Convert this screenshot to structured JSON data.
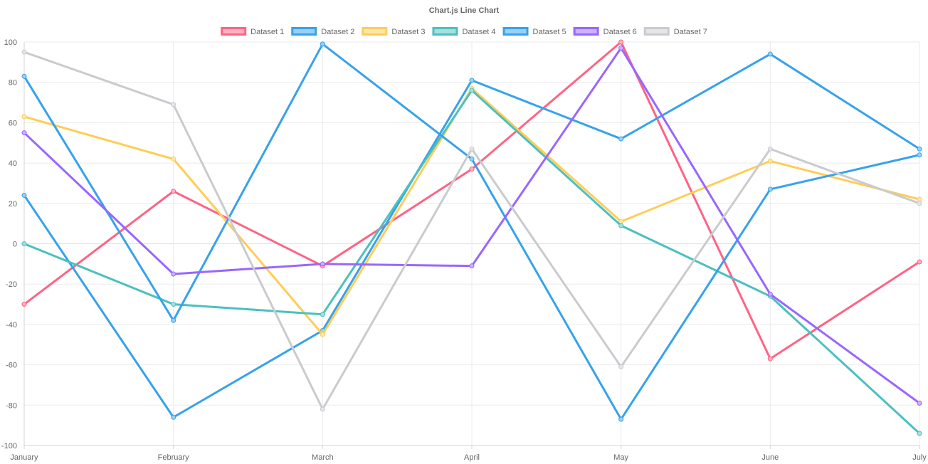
{
  "chart_data": {
    "type": "line",
    "title": "Chart.js Line Chart",
    "xlabel": "",
    "ylabel": "",
    "categories": [
      "January",
      "February",
      "March",
      "April",
      "May",
      "June",
      "July"
    ],
    "ylim": [
      -100,
      100
    ],
    "yticks": [
      100,
      80,
      60,
      40,
      20,
      0,
      -20,
      -40,
      -60,
      -80,
      -100
    ],
    "grid": true,
    "legend_position": "top",
    "series": [
      {
        "name": "Dataset 1",
        "color": "#ff6384",
        "fill": "#ffb1c1",
        "values": [
          -30,
          26,
          -11,
          37,
          100,
          -57,
          -9
        ]
      },
      {
        "name": "Dataset 2",
        "color": "#36a2eb",
        "fill": "#9ad0f5",
        "values": [
          24,
          -86,
          -43,
          81,
          52,
          94,
          47
        ]
      },
      {
        "name": "Dataset 3",
        "color": "#ffcd56",
        "fill": "#ffe6aa",
        "values": [
          63,
          42,
          -45,
          77,
          11,
          41,
          22
        ]
      },
      {
        "name": "Dataset 4",
        "color": "#4bc0c0",
        "fill": "#a5dfdf",
        "values": [
          0,
          -30,
          -35,
          76,
          9,
          -26,
          -94
        ]
      },
      {
        "name": "Dataset 5",
        "color": "#36a2eb",
        "fill": "#9ad0f5",
        "values": [
          83,
          -38,
          99,
          42,
          -87,
          27,
          44
        ]
      },
      {
        "name": "Dataset 6",
        "color": "#9966ff",
        "fill": "#ccb2ff",
        "values": [
          55,
          -15,
          -10,
          -11,
          97,
          -25,
          -79
        ]
      },
      {
        "name": "Dataset 7",
        "color": "#c9cbcf",
        "fill": "#e4e5e7",
        "values": [
          95,
          69,
          -82,
          47,
          -61,
          47,
          20
        ]
      }
    ]
  }
}
